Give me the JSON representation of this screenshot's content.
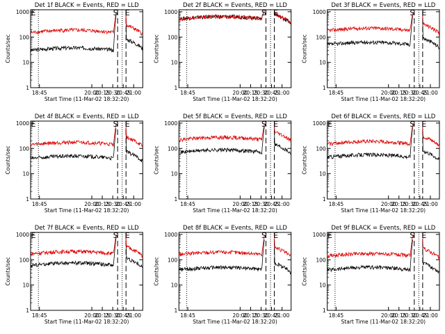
{
  "colors": {
    "events": "#000000",
    "lld": "#dd0000",
    "axis": "#000000"
  },
  "chart_data": [
    {
      "type": "line",
      "title": "Det 1f BLACK = Events, RED = LLD",
      "xlabel": "Start Time (11-Mar-02 18:32:20)",
      "ylabel": "Counts/sec",
      "xticks": [
        "18:45",
        "20:00",
        "20:15",
        "20:30",
        "20:45",
        "21:00"
      ],
      "yticks": [
        "1",
        "10",
        "100",
        "1000"
      ],
      "ylim": [
        1,
        1200
      ],
      "log_y": true,
      "vlines_dotted": [
        "18:45",
        "20:45"
      ],
      "vlines_dashed": [
        "20:30",
        "20:45"
      ],
      "markers": [
        {
          "label": "E",
          "at": "start"
        },
        {
          "label": "S",
          "at": "20:30"
        },
        {
          "label": "E",
          "at": "20:45"
        }
      ],
      "series": [
        {
          "name": "Events",
          "color": "black",
          "level": 30,
          "spike": 800,
          "post": 50
        },
        {
          "name": "LLD",
          "color": "red",
          "level": 150,
          "spike": 1000,
          "post": 180
        }
      ]
    },
    {
      "type": "line",
      "title": "Det 2f BLACK = Events, RED = LLD",
      "xlabel": "Start Time (11-Mar-02 18:32:20)",
      "ylabel": "Counts/sec",
      "xticks": [
        "18:45",
        "20:00",
        "20:15",
        "20:30",
        "20:45",
        "21:00"
      ],
      "yticks": [
        "1",
        "10",
        "100",
        "1000"
      ],
      "ylim": [
        1,
        1200
      ],
      "log_y": true,
      "vlines_dotted": [
        "18:45",
        "20:45"
      ],
      "vlines_dashed": [
        "20:30",
        "20:45"
      ],
      "markers": [
        {
          "label": "S",
          "at": "20:30"
        },
        {
          "label": "E",
          "at": "20:45"
        }
      ],
      "series": [
        {
          "name": "Events",
          "color": "black",
          "level": 520,
          "spike": 1000,
          "post": 480
        },
        {
          "name": "LLD",
          "color": "red",
          "level": 520,
          "spike": 1000,
          "post": 500
        }
      ]
    },
    {
      "type": "line",
      "title": "Det 3f BLACK = Events, RED = LLD",
      "xlabel": "Start Time (11-Mar-02 18:32:20)",
      "ylabel": "Counts/sec",
      "xticks": [
        "18:45",
        "20:00",
        "20:15",
        "20:30",
        "20:45",
        "21:00"
      ],
      "yticks": [
        "1",
        "10",
        "100",
        "1000"
      ],
      "ylim": [
        1,
        1200
      ],
      "log_y": true,
      "vlines_dotted": [
        "18:45",
        "20:45"
      ],
      "vlines_dashed": [
        "20:30",
        "20:45"
      ],
      "markers": [
        {
          "label": "S",
          "at": "20:30"
        },
        {
          "label": "E",
          "at": "20:45"
        }
      ],
      "series": [
        {
          "name": "Events",
          "color": "black",
          "level": 50,
          "spike": 800,
          "post": 55
        },
        {
          "name": "LLD",
          "color": "red",
          "level": 180,
          "spike": 1000,
          "post": 200
        }
      ]
    },
    {
      "type": "line",
      "title": "Det 4f BLACK = Events, RED = LLD",
      "xlabel": "Start Time (11-Mar-02 18:32:20)",
      "ylabel": "Counts/sec",
      "xticks": [
        "18:45",
        "20:00",
        "20:15",
        "20:30",
        "20:45",
        "21:00"
      ],
      "yticks": [
        "1",
        "10",
        "100",
        "1000"
      ],
      "ylim": [
        1,
        1200
      ],
      "log_y": true,
      "vlines_dotted": [
        "18:45",
        "20:45"
      ],
      "vlines_dashed": [
        "20:30",
        "20:45"
      ],
      "markers": [
        {
          "label": "E",
          "at": "start"
        },
        {
          "label": "S",
          "at": "20:30"
        },
        {
          "label": "E",
          "at": "20:45"
        }
      ],
      "series": [
        {
          "name": "Events",
          "color": "black",
          "level": 40,
          "spike": 700,
          "post": 45
        },
        {
          "name": "LLD",
          "color": "red",
          "level": 140,
          "spike": 1000,
          "post": 170
        }
      ]
    },
    {
      "type": "line",
      "title": "Det 5f BLACK = Events, RED = LLD",
      "xlabel": "Start Time (11-Mar-02 18:32:20)",
      "ylabel": "Counts/sec",
      "xticks": [
        "18:45",
        "20:00",
        "20:15",
        "20:30",
        "20:45",
        "21:00"
      ],
      "yticks": [
        "1",
        "10",
        "100",
        "1000"
      ],
      "ylim": [
        1,
        1200
      ],
      "log_y": true,
      "vlines_dotted": [
        "18:45",
        "20:45"
      ],
      "vlines_dashed": [
        "20:30",
        "20:45"
      ],
      "markers": [
        {
          "label": "S",
          "at": "20:30"
        },
        {
          "label": "E",
          "at": "20:45"
        }
      ],
      "series": [
        {
          "name": "Events",
          "color": "black",
          "level": 70,
          "spike": 800,
          "post": 90
        },
        {
          "name": "LLD",
          "color": "red",
          "level": 220,
          "spike": 1000,
          "post": 280
        }
      ]
    },
    {
      "type": "line",
      "title": "Det 6f BLACK = Events, RED = LLD",
      "xlabel": "Start Time (11-Mar-02 18:32:20)",
      "ylabel": "Counts/sec",
      "xticks": [
        "18:45",
        "20:00",
        "20:15",
        "20:30",
        "20:45",
        "21:00"
      ],
      "yticks": [
        "1",
        "10",
        "100",
        "1000"
      ],
      "ylim": [
        1,
        1200
      ],
      "log_y": true,
      "vlines_dotted": [
        "18:45",
        "20:45"
      ],
      "vlines_dashed": [
        "20:30",
        "20:45"
      ],
      "markers": [
        {
          "label": "E",
          "at": "start"
        },
        {
          "label": "S",
          "at": "20:30"
        },
        {
          "label": "E",
          "at": "20:45"
        }
      ],
      "series": [
        {
          "name": "Events",
          "color": "black",
          "level": 45,
          "spike": 800,
          "post": 50
        },
        {
          "name": "LLD",
          "color": "red",
          "level": 150,
          "spike": 1000,
          "post": 180
        }
      ]
    },
    {
      "type": "line",
      "title": "Det 7f BLACK = Events, RED = LLD",
      "xlabel": "Start Time (11-Mar-02 18:32:20)",
      "ylabel": "Counts/sec",
      "xticks": [
        "18:45",
        "20:00",
        "20:15",
        "20:30",
        "20:45",
        "21:00"
      ],
      "yticks": [
        "1",
        "10",
        "100",
        "1000"
      ],
      "ylim": [
        1,
        1200
      ],
      "log_y": true,
      "vlines_dotted": [
        "18:45",
        "20:45"
      ],
      "vlines_dashed": [
        "20:30",
        "20:45"
      ],
      "markers": [
        {
          "label": "E",
          "at": "start"
        },
        {
          "label": "S",
          "at": "20:30"
        },
        {
          "label": "E",
          "at": "20:45"
        }
      ],
      "series": [
        {
          "name": "Events",
          "color": "black",
          "level": 60,
          "spike": 800,
          "post": 70
        },
        {
          "name": "LLD",
          "color": "red",
          "level": 170,
          "spike": 1000,
          "post": 200
        }
      ]
    },
    {
      "type": "line",
      "title": "Det 8f BLACK = Events, RED = LLD",
      "xlabel": "Start Time (11-Mar-02 18:32:20)",
      "ylabel": "Counts/sec",
      "xticks": [
        "18:45",
        "20:00",
        "20:15",
        "20:30",
        "20:45",
        "21:00"
      ],
      "yticks": [
        "1",
        "10",
        "100",
        "1000"
      ],
      "ylim": [
        1,
        1200
      ],
      "log_y": true,
      "vlines_dotted": [
        "18:45",
        "20:45"
      ],
      "vlines_dashed": [
        "20:30",
        "20:45"
      ],
      "markers": [
        {
          "label": "S",
          "at": "20:30"
        },
        {
          "label": "E",
          "at": "20:45"
        }
      ],
      "series": [
        {
          "name": "Events",
          "color": "black",
          "level": 40,
          "spike": 700,
          "post": 45
        },
        {
          "name": "LLD",
          "color": "red",
          "level": 160,
          "spike": 1000,
          "post": 190
        }
      ]
    },
    {
      "type": "line",
      "title": "Det 9f BLACK = Events, RED = LLD",
      "xlabel": "Start Time (11-Mar-02 18:32:20)",
      "ylabel": "Counts/sec",
      "xticks": [
        "18:45",
        "20:00",
        "20:15",
        "20:30",
        "20:45",
        "21:00"
      ],
      "yticks": [
        "1",
        "10",
        "100",
        "1000"
      ],
      "ylim": [
        1,
        1200
      ],
      "log_y": true,
      "vlines_dotted": [
        "18:45",
        "20:45"
      ],
      "vlines_dashed": [
        "20:30",
        "20:45"
      ],
      "markers": [
        {
          "label": "E",
          "at": "start"
        },
        {
          "label": "S",
          "at": "20:30"
        },
        {
          "label": "E",
          "at": "20:45"
        }
      ],
      "series": [
        {
          "name": "Events",
          "color": "black",
          "level": 40,
          "spike": 700,
          "post": 45
        },
        {
          "name": "LLD",
          "color": "red",
          "level": 140,
          "spike": 1000,
          "post": 170
        }
      ]
    }
  ]
}
